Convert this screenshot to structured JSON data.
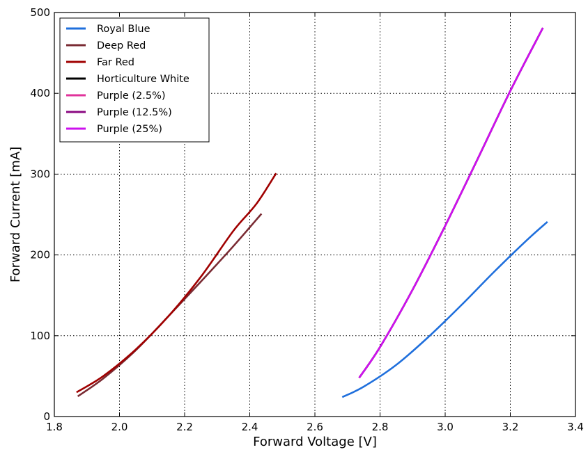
{
  "chart_data": {
    "type": "line",
    "title": "",
    "xlabel": "Forward Voltage [V]",
    "ylabel": "Forward Current [mA]",
    "xlim": [
      1.8,
      3.4
    ],
    "ylim": [
      0,
      500
    ],
    "xticks": [
      1.8,
      2.0,
      2.2,
      2.4,
      2.6,
      2.8,
      3.0,
      3.2,
      3.4
    ],
    "yticks": [
      0,
      100,
      200,
      300,
      400,
      500
    ],
    "xtick_labels": [
      "1.8",
      "2.0",
      "2.2",
      "2.4",
      "2.6",
      "2.8",
      "3.0",
      "3.2",
      "3.4"
    ],
    "ytick_labels": [
      "0",
      "100",
      "200",
      "300",
      "400",
      "500"
    ],
    "grid": true,
    "legend_position": "top-left",
    "series": [
      {
        "name": "Royal Blue",
        "color": "#1f6fdc",
        "points": [
          [
            2.684,
            24
          ],
          [
            2.75,
            37
          ],
          [
            2.85,
            64
          ],
          [
            2.95,
            99
          ],
          [
            3.05,
            138
          ],
          [
            3.15,
            179
          ],
          [
            3.25,
            218
          ],
          [
            3.314,
            241
          ]
        ]
      },
      {
        "name": "Deep Red",
        "color": "#7a2b33",
        "points": [
          [
            1.872,
            25
          ],
          [
            1.95,
            47
          ],
          [
            2.05,
            82
          ],
          [
            2.15,
            124
          ],
          [
            2.25,
            167
          ],
          [
            2.35,
            211
          ],
          [
            2.436,
            251
          ]
        ]
      },
      {
        "name": "Far Red",
        "color": "#a00000",
        "points": [
          [
            1.868,
            30
          ],
          [
            1.95,
            50
          ],
          [
            2.05,
            83
          ],
          [
            2.15,
            124
          ],
          [
            2.25,
            173
          ],
          [
            2.35,
            230
          ],
          [
            2.42,
            263
          ],
          [
            2.481,
            301
          ]
        ]
      },
      {
        "name": "Horticulture White",
        "color": "#000000",
        "points": [
          [
            2.736,
            48
          ],
          [
            2.8,
            86
          ],
          [
            2.9,
            157
          ],
          [
            3.0,
            236
          ],
          [
            3.1,
            319
          ],
          [
            3.2,
            403
          ],
          [
            3.3,
            481
          ]
        ]
      },
      {
        "name": "Purple (2.5%)",
        "color": "#e0339b",
        "points": [
          [
            2.736,
            48
          ],
          [
            2.8,
            86
          ],
          [
            2.9,
            157
          ],
          [
            3.0,
            236
          ],
          [
            3.1,
            319
          ],
          [
            3.2,
            403
          ],
          [
            3.3,
            481
          ]
        ]
      },
      {
        "name": "Purple (12.5%)",
        "color": "#8b0a82",
        "points": [
          [
            2.736,
            48
          ],
          [
            2.8,
            86
          ],
          [
            2.9,
            157
          ],
          [
            3.0,
            236
          ],
          [
            3.1,
            319
          ],
          [
            3.2,
            403
          ],
          [
            3.3,
            481
          ]
        ]
      },
      {
        "name": "Purple (25%)",
        "color": "#cc11ee",
        "points": [
          [
            2.736,
            48
          ],
          [
            2.8,
            86
          ],
          [
            2.9,
            157
          ],
          [
            3.0,
            236
          ],
          [
            3.1,
            319
          ],
          [
            3.2,
            403
          ],
          [
            3.3,
            481
          ]
        ]
      }
    ]
  }
}
